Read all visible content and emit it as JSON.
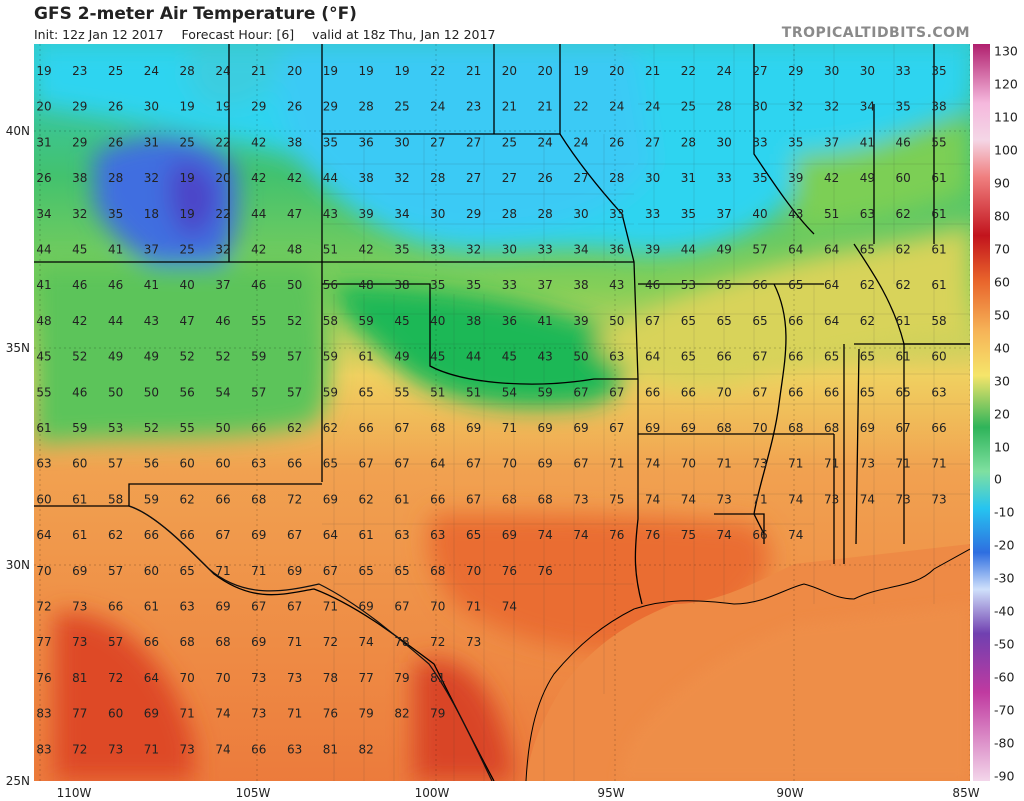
{
  "header": {
    "title": "GFS 2-meter Air Temperature (°F)",
    "init": "Init: 12z Jan 12 2017",
    "forecast_hour": "Forecast Hour: [6]",
    "valid": "valid at 18z Thu, Jan 12 2017",
    "brand": "TROPICALTIDBITS.COM"
  },
  "axes": {
    "lat_labels": [
      "40N",
      "35N",
      "30N",
      "25N"
    ],
    "lon_labels": [
      "110W",
      "105W",
      "100W",
      "95W",
      "90W",
      "85W"
    ]
  },
  "colorbar": {
    "labels": [
      "130",
      "120",
      "110",
      "100",
      "90",
      "80",
      "70",
      "60",
      "50",
      "40",
      "30",
      "20",
      "10",
      "0",
      "-10",
      "-20",
      "-30",
      "-40",
      "-50",
      "-60",
      "-70",
      "-80",
      "-90"
    ]
  },
  "station_rows": [
    [
      "19",
      "23",
      "25",
      "24",
      "28",
      "24",
      "21",
      "20",
      "19",
      "19",
      "19",
      "22",
      "21",
      "20",
      "20",
      "19",
      "20",
      "21",
      "22",
      "24",
      "27",
      "29",
      "30",
      "30",
      "33",
      "35"
    ],
    [
      "20",
      "29",
      "26",
      "30",
      "19",
      "19",
      "29",
      "26",
      "29",
      "28",
      "25",
      "24",
      "23",
      "21",
      "21",
      "22",
      "24",
      "24",
      "25",
      "28",
      "30",
      "32",
      "32",
      "34",
      "35",
      "38"
    ],
    [
      "31",
      "29",
      "26",
      "31",
      "25",
      "22",
      "42",
      "38",
      "35",
      "36",
      "30",
      "27",
      "27",
      "25",
      "24",
      "24",
      "26",
      "27",
      "28",
      "30",
      "33",
      "35",
      "37",
      "41",
      "46",
      "55"
    ],
    [
      "26",
      "38",
      "28",
      "32",
      "19",
      "20",
      "42",
      "42",
      "44",
      "38",
      "32",
      "28",
      "27",
      "27",
      "26",
      "27",
      "28",
      "30",
      "31",
      "33",
      "35",
      "39",
      "42",
      "49",
      "60",
      "61"
    ],
    [
      "34",
      "32",
      "35",
      "18",
      "19",
      "22",
      "44",
      "47",
      "43",
      "39",
      "34",
      "30",
      "29",
      "28",
      "28",
      "30",
      "33",
      "33",
      "35",
      "37",
      "40",
      "43",
      "51",
      "63",
      "62",
      "61"
    ],
    [
      "44",
      "45",
      "41",
      "37",
      "25",
      "32",
      "42",
      "48",
      "51",
      "42",
      "35",
      "33",
      "32",
      "30",
      "33",
      "34",
      "36",
      "39",
      "44",
      "49",
      "57",
      "64",
      "64",
      "65",
      "62",
      "61"
    ],
    [
      "41",
      "46",
      "46",
      "41",
      "40",
      "37",
      "46",
      "50",
      "56",
      "48",
      "38",
      "35",
      "35",
      "33",
      "37",
      "38",
      "43",
      "46",
      "53",
      "65",
      "66",
      "65",
      "64",
      "62",
      "62",
      "61"
    ],
    [
      "48",
      "42",
      "44",
      "43",
      "47",
      "46",
      "55",
      "52",
      "58",
      "59",
      "45",
      "40",
      "38",
      "36",
      "41",
      "39",
      "50",
      "67",
      "65",
      "65",
      "65",
      "66",
      "64",
      "62",
      "61",
      "58"
    ],
    [
      "45",
      "52",
      "49",
      "49",
      "52",
      "52",
      "59",
      "57",
      "59",
      "61",
      "49",
      "45",
      "44",
      "45",
      "43",
      "50",
      "63",
      "64",
      "65",
      "66",
      "67",
      "66",
      "65",
      "65",
      "61",
      "60"
    ],
    [
      "55",
      "46",
      "50",
      "50",
      "56",
      "54",
      "57",
      "57",
      "59",
      "65",
      "55",
      "51",
      "51",
      "54",
      "59",
      "67",
      "67",
      "66",
      "66",
      "70",
      "67",
      "66",
      "66",
      "65",
      "65",
      "63"
    ],
    [
      "61",
      "59",
      "53",
      "52",
      "55",
      "50",
      "66",
      "62",
      "62",
      "66",
      "67",
      "68",
      "69",
      "71",
      "69",
      "69",
      "67",
      "69",
      "69",
      "68",
      "70",
      "68",
      "68",
      "69",
      "67",
      "66"
    ],
    [
      "63",
      "60",
      "57",
      "56",
      "60",
      "60",
      "63",
      "66",
      "65",
      "67",
      "67",
      "64",
      "67",
      "70",
      "69",
      "67",
      "71",
      "74",
      "70",
      "71",
      "73",
      "71",
      "71",
      "73",
      "71",
      "71"
    ],
    [
      "60",
      "61",
      "58",
      "59",
      "62",
      "66",
      "68",
      "72",
      "69",
      "62",
      "61",
      "66",
      "67",
      "68",
      "68",
      "73",
      "75",
      "74",
      "74",
      "73",
      "71",
      "74",
      "73",
      "74",
      "73",
      "73"
    ],
    [
      "64",
      "61",
      "62",
      "66",
      "66",
      "67",
      "69",
      "67",
      "64",
      "61",
      "63",
      "63",
      "65",
      "69",
      "74",
      "74",
      "76",
      "76",
      "75",
      "74",
      "66",
      "74"
    ],
    [
      "70",
      "69",
      "57",
      "60",
      "65",
      "71",
      "71",
      "69",
      "67",
      "65",
      "65",
      "68",
      "70",
      "76",
      "76"
    ],
    [
      "72",
      "73",
      "66",
      "61",
      "63",
      "69",
      "67",
      "67",
      "71",
      "69",
      "67",
      "70",
      "71",
      "74"
    ],
    [
      "77",
      "73",
      "57",
      "66",
      "68",
      "68",
      "69",
      "71",
      "72",
      "74",
      "78",
      "72",
      "73"
    ],
    [
      "76",
      "81",
      "72",
      "64",
      "70",
      "70",
      "73",
      "73",
      "78",
      "77",
      "79",
      "81"
    ],
    [
      "83",
      "77",
      "60",
      "69",
      "71",
      "74",
      "73",
      "71",
      "76",
      "79",
      "82",
      "79"
    ],
    [
      "83",
      "72",
      "73",
      "71",
      "73",
      "74",
      "66",
      "63",
      "81",
      "82"
    ]
  ]
}
